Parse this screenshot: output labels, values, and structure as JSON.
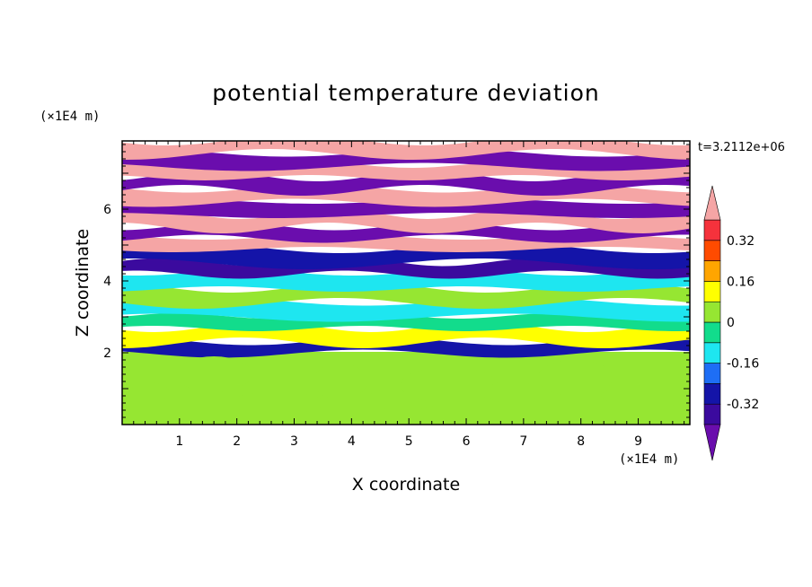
{
  "chart_data": {
    "type": "heatmap",
    "title": "potential temperature deviation",
    "xlabel": "X coordinate",
    "ylabel": "Z coordinate",
    "x_unit": "(×1E4 m)",
    "y_unit": "(×1E4 m)",
    "time_label": "t=3.2112e+06",
    "xlim": [
      0,
      9.9
    ],
    "ylim": [
      0,
      7.9
    ],
    "x_ticks": [
      1,
      2,
      3,
      4,
      5,
      6,
      7,
      8,
      9
    ],
    "y_ticks": [
      2,
      4,
      6
    ],
    "colorbar": {
      "levels": [
        -0.4,
        -0.32,
        -0.24,
        -0.16,
        -0.08,
        0,
        0.08,
        0.16,
        0.24,
        0.32,
        0.4
      ],
      "labels": [
        "0.32",
        "0.16",
        "0",
        "-0.16",
        "-0.32"
      ],
      "label_values": [
        0.32,
        0.16,
        0,
        -0.16,
        -0.32
      ],
      "colors": [
        "#6a0dad",
        "#3b0a9e",
        "#1414a8",
        "#1e6ef5",
        "#1ee6f0",
        "#12dc8c",
        "#96e632",
        "#ffff00",
        "#ffa500",
        "#ff4b00",
        "#f5323c",
        "#f5a5a5"
      ],
      "extend": "both"
    },
    "bands": [
      {
        "z_lo": 0.0,
        "z_hi": 2.0,
        "value": 0.04
      },
      {
        "z_lo": 2.0,
        "z_hi": 2.3,
        "value": -0.3
      },
      {
        "z_lo": 2.3,
        "z_hi": 2.7,
        "value": 0.1
      },
      {
        "z_lo": 2.7,
        "z_hi": 3.0,
        "value": -0.05
      },
      {
        "z_lo": 3.0,
        "z_hi": 3.4,
        "value": -0.14
      },
      {
        "z_lo": 3.4,
        "z_hi": 3.8,
        "value": 0.05
      },
      {
        "z_lo": 3.8,
        "z_hi": 4.2,
        "value": -0.14
      },
      {
        "z_lo": 4.2,
        "z_hi": 4.5,
        "value": -0.36
      },
      {
        "z_lo": 4.5,
        "z_hi": 4.9,
        "value": -0.25
      },
      {
        "z_lo": 4.9,
        "z_hi": 5.2,
        "value": 0.42
      },
      {
        "z_lo": 5.2,
        "z_hi": 5.5,
        "value": -0.42
      },
      {
        "z_lo": 5.5,
        "z_hi": 5.85,
        "value": 0.42
      },
      {
        "z_lo": 5.85,
        "z_hi": 6.2,
        "value": -0.42
      },
      {
        "z_lo": 6.2,
        "z_hi": 6.55,
        "value": 0.42
      },
      {
        "z_lo": 6.55,
        "z_hi": 6.9,
        "value": -0.42
      },
      {
        "z_lo": 6.9,
        "z_hi": 7.2,
        "value": 0.42
      },
      {
        "z_lo": 7.2,
        "z_hi": 7.55,
        "value": -0.42
      },
      {
        "z_lo": 7.55,
        "z_hi": 7.9,
        "value": 0.42
      }
    ],
    "grid": false,
    "legend": "right"
  }
}
